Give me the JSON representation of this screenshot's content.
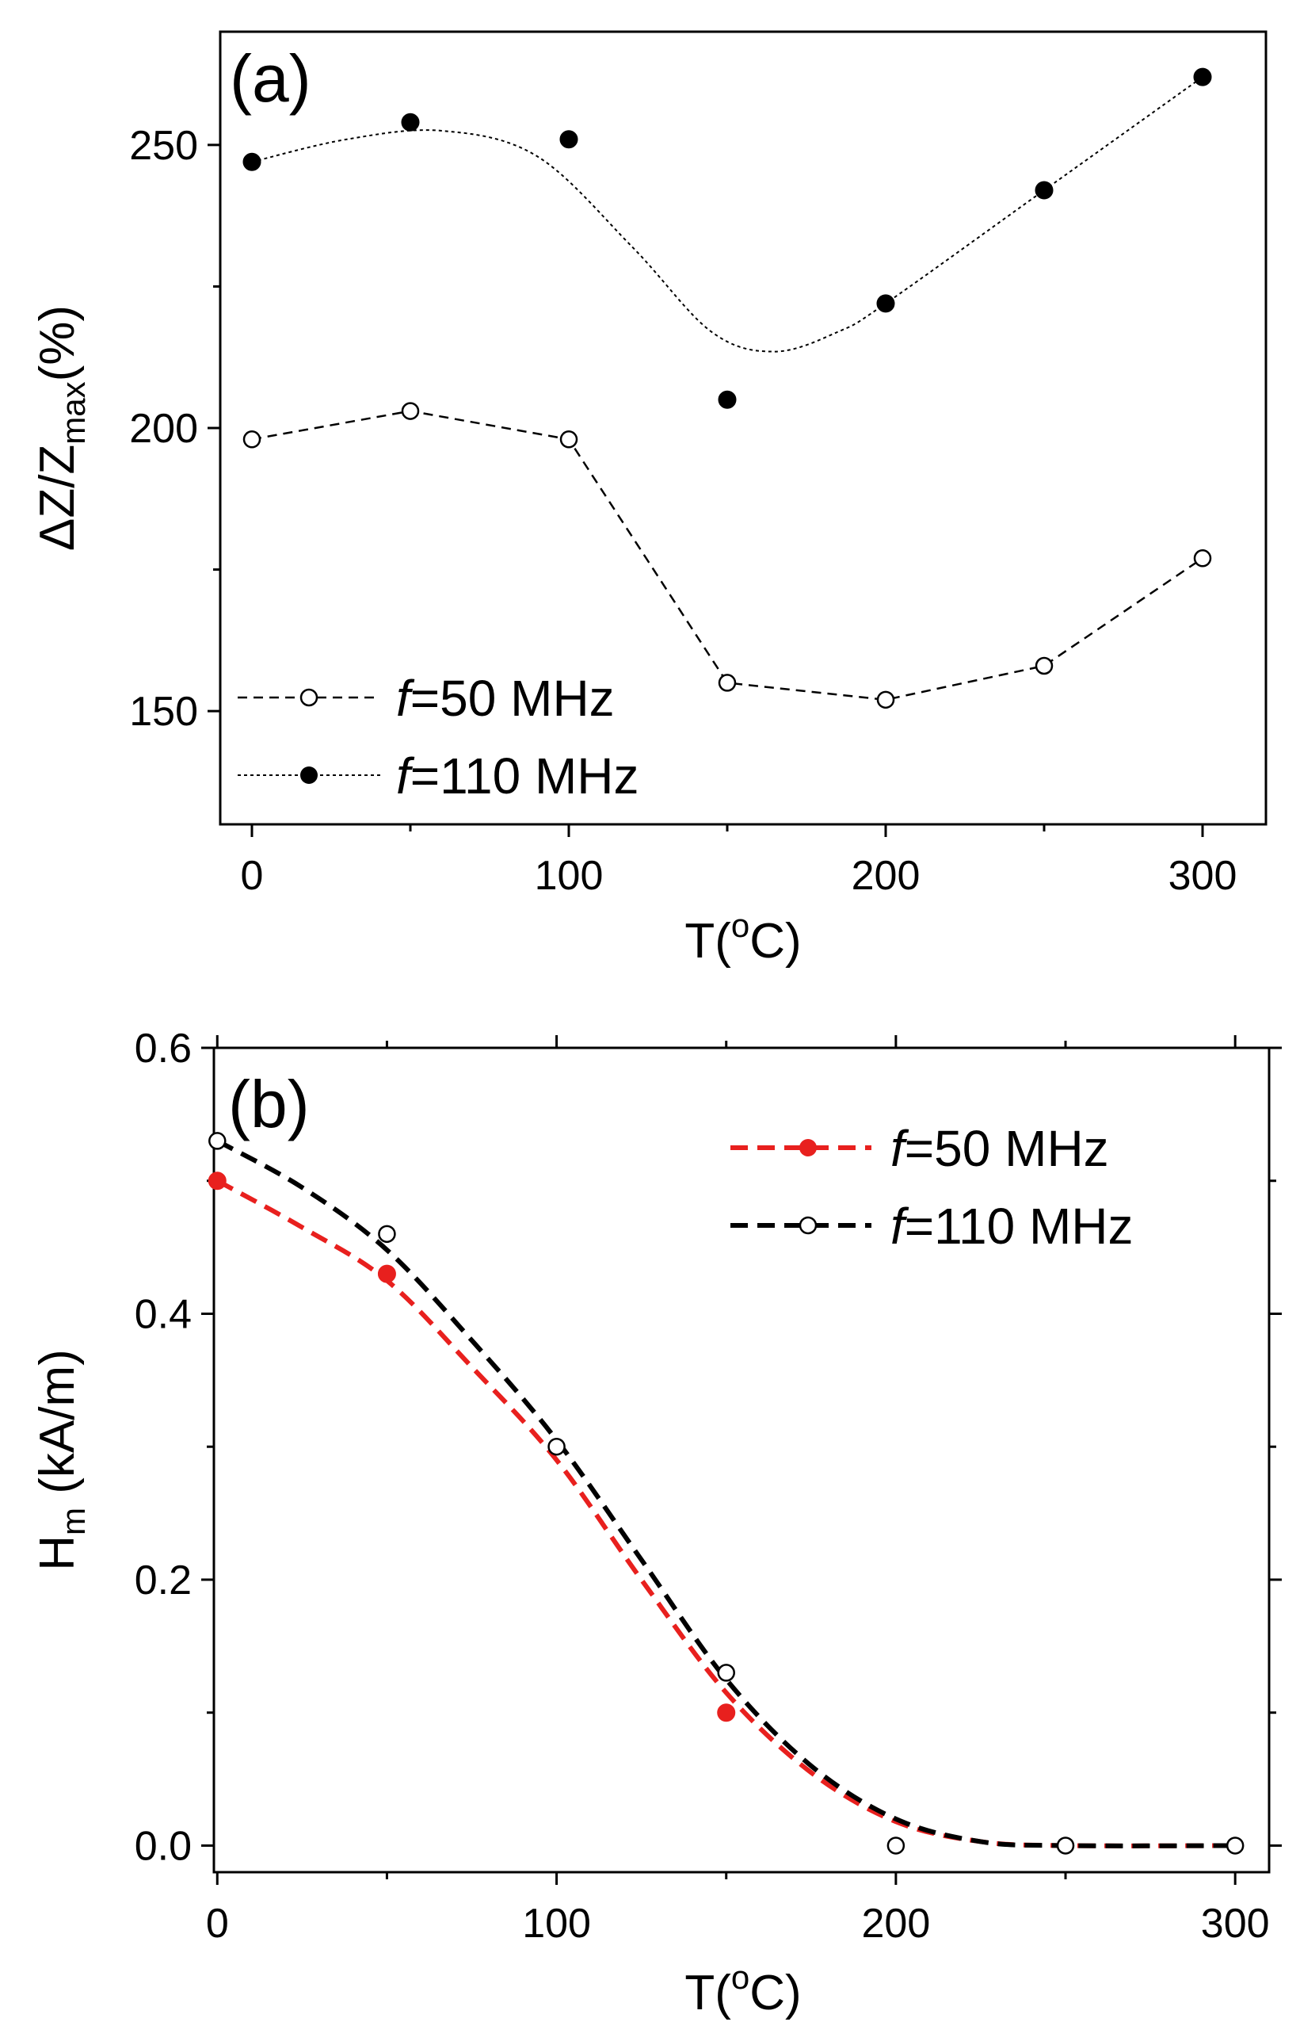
{
  "chart_data": [
    {
      "type": "scatter",
      "panel_label": "(a)",
      "xlabel": {
        "base": "T(",
        "sup": "o",
        "tail": "C)"
      },
      "ylabel": {
        "main": "ΔZ/Z",
        "sub": "max",
        "tail": "(%)"
      },
      "xlim": [
        -10,
        320
      ],
      "ylim": [
        130,
        270
      ],
      "xticks": [
        0,
        100,
        200,
        300
      ],
      "xticks_minor": [
        50,
        150,
        250
      ],
      "yticks": [
        150,
        200,
        250
      ],
      "yticks_minor": [
        175,
        225
      ],
      "legend_position": "bottom-left",
      "series": [
        {
          "name": "=50 MHz",
          "name_prefix": "f",
          "marker": "open-circle",
          "line": "dashed",
          "color": "#000000",
          "x": [
            0,
            50,
            100,
            150,
            200,
            250,
            300
          ],
          "y": [
            198,
            203,
            198,
            155,
            152,
            158,
            177
          ]
        },
        {
          "name": "=110 MHz",
          "name_prefix": "f",
          "marker": "filled-circle",
          "line": "dotted",
          "color": "#000000",
          "x": [
            0,
            50,
            100,
            150,
            200,
            250,
            300
          ],
          "y": [
            247,
            254,
            251,
            205,
            222,
            242,
            262
          ],
          "fit_curve": [
            [
              0,
              247
            ],
            [
              30,
              251
            ],
            [
              60,
              252.5
            ],
            [
              90,
              248
            ],
            [
              120,
              232
            ],
            [
              145,
              217
            ],
            [
              165,
              213.5
            ],
            [
              185,
              217
            ],
            [
              200,
              222
            ],
            [
              250,
              242
            ],
            [
              300,
              262
            ]
          ]
        }
      ]
    },
    {
      "type": "scatter",
      "panel_label": "(b)",
      "xlabel": {
        "base": "T(",
        "sup": "o",
        "tail": "C)"
      },
      "ylabel": {
        "main": "H",
        "sub": "m",
        "tail": " (kA/m)"
      },
      "xlim": [
        -1,
        310
      ],
      "ylim": [
        -0.02,
        0.6
      ],
      "xticks": [
        0,
        100,
        200,
        300
      ],
      "xticks_minor": [
        50,
        150,
        250
      ],
      "yticks": [
        0.0,
        0.2,
        0.4,
        0.6
      ],
      "ytick_labels": [
        "0.0",
        "0.2",
        "0.4",
        "0.6"
      ],
      "yticks_minor": [
        0.1,
        0.3,
        0.5
      ],
      "legend_position": "top-right",
      "series": [
        {
          "name": "=50 MHz",
          "name_prefix": "f",
          "marker": "filled-circle",
          "line": "dashed",
          "color": "#e8201e",
          "x": [
            0,
            50,
            150
          ],
          "y": [
            0.5,
            0.43,
            0.1
          ],
          "fit_curve": [
            [
              0,
              0.5
            ],
            [
              25,
              0.465
            ],
            [
              50,
              0.425
            ],
            [
              75,
              0.36
            ],
            [
              100,
              0.29
            ],
            [
              125,
              0.2
            ],
            [
              150,
              0.115
            ],
            [
              175,
              0.055
            ],
            [
              200,
              0.018
            ],
            [
              225,
              0.003
            ],
            [
              250,
              0.0
            ],
            [
              300,
              0.0
            ]
          ]
        },
        {
          "name": "=110 MHz",
          "name_prefix": "f",
          "marker": "open-circle",
          "line": "dashed",
          "color": "#000000",
          "x": [
            0,
            50,
            100,
            150,
            200,
            250,
            300
          ],
          "y": [
            0.53,
            0.46,
            0.3,
            0.13,
            0.0,
            0.0,
            0.0
          ],
          "fit_curve": [
            [
              0,
              0.53
            ],
            [
              25,
              0.495
            ],
            [
              50,
              0.448
            ],
            [
              75,
              0.38
            ],
            [
              100,
              0.305
            ],
            [
              125,
              0.215
            ],
            [
              150,
              0.125
            ],
            [
              175,
              0.06
            ],
            [
              200,
              0.02
            ],
            [
              225,
              0.003
            ],
            [
              250,
              0.0
            ],
            [
              300,
              0.0
            ]
          ]
        }
      ]
    }
  ]
}
